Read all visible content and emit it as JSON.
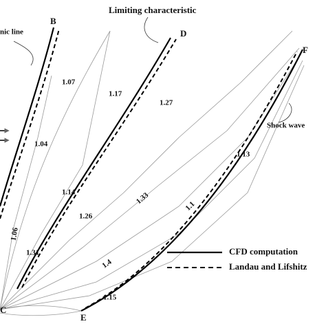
{
  "header": {
    "title": "Limiting characteristic",
    "sonic": "nic line",
    "shock": "Shock wave"
  },
  "points": {
    "B": "B",
    "D": "D",
    "F": "F",
    "C": "C",
    "E": "E"
  },
  "regions": [
    "1.07",
    "1.17",
    "1.27",
    "1.04",
    "1.14",
    "1.13",
    "1.26",
    "1.33",
    "1.1",
    "1.06",
    "1.31",
    "1.4",
    "1.15"
  ],
  "legend": [
    "CFD computation",
    "Landau and Lifshitz"
  ]
}
